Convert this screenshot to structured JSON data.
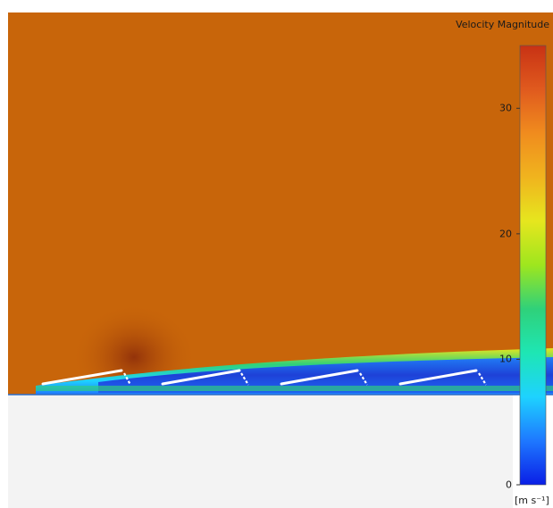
{
  "legend": {
    "title": "Velocity Magnitude",
    "unit": "[m s⁻¹]",
    "min": 0,
    "max": 35,
    "ticks": [
      {
        "value": 0,
        "label": "0"
      },
      {
        "value": 10,
        "label": "10"
      },
      {
        "value": 20,
        "label": "20"
      },
      {
        "value": 30,
        "label": "30"
      }
    ],
    "colormap": [
      "#0a1ee6",
      "#1e78ff",
      "#1ed2ff",
      "#1ee6b4",
      "#2fd17a",
      "#9ee61e",
      "#e6e61e",
      "#f0b41e",
      "#f08c1e",
      "#e05a1e",
      "#c83214"
    ]
  },
  "colors": {
    "freestream": "#c8650a",
    "ground": "#f3f3f3",
    "wake": "#1e46d8",
    "panel": "#ffffff"
  },
  "panels_count": 4
}
